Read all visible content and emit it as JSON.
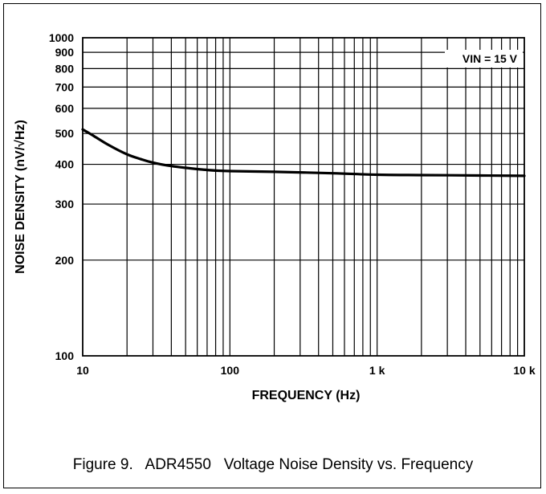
{
  "chart_data": {
    "type": "line",
    "xlabel": "FREQUENCY (Hz)",
    "ylabel": "NOISE DENSITY (nV/√Hz)",
    "x_scale": "log",
    "y_scale": "log",
    "xlim": [
      10,
      10000
    ],
    "ylim": [
      100,
      1000
    ],
    "x_ticks": [
      {
        "value": 10,
        "label": "10"
      },
      {
        "value": 100,
        "label": "100"
      },
      {
        "value": 1000,
        "label": "1 k"
      },
      {
        "value": 10000,
        "label": "10 k"
      }
    ],
    "y_ticks": [
      {
        "value": 100,
        "label": "100"
      },
      {
        "value": 200,
        "label": "200"
      },
      {
        "value": 300,
        "label": "300"
      },
      {
        "value": 400,
        "label": "400"
      },
      {
        "value": 500,
        "label": "500"
      },
      {
        "value": 600,
        "label": "600"
      },
      {
        "value": 700,
        "label": "700"
      },
      {
        "value": 800,
        "label": "800"
      },
      {
        "value": 900,
        "label": "900"
      },
      {
        "value": 1000,
        "label": "1000"
      }
    ],
    "grid": true,
    "annotation": "VIN = 15 V",
    "series": [
      {
        "x": [
          10,
          12,
          15,
          20,
          25,
          30,
          40,
          50,
          70,
          100,
          200,
          500,
          1000,
          2000,
          5000,
          10000
        ],
        "y": [
          515,
          490,
          460,
          430,
          415,
          405,
          395,
          390,
          384,
          381,
          379,
          375,
          371,
          370,
          369,
          368
        ]
      }
    ],
    "line_color": "#000000"
  },
  "caption": "Figure 9.   ADR4550   Voltage Noise Density vs. Frequency"
}
